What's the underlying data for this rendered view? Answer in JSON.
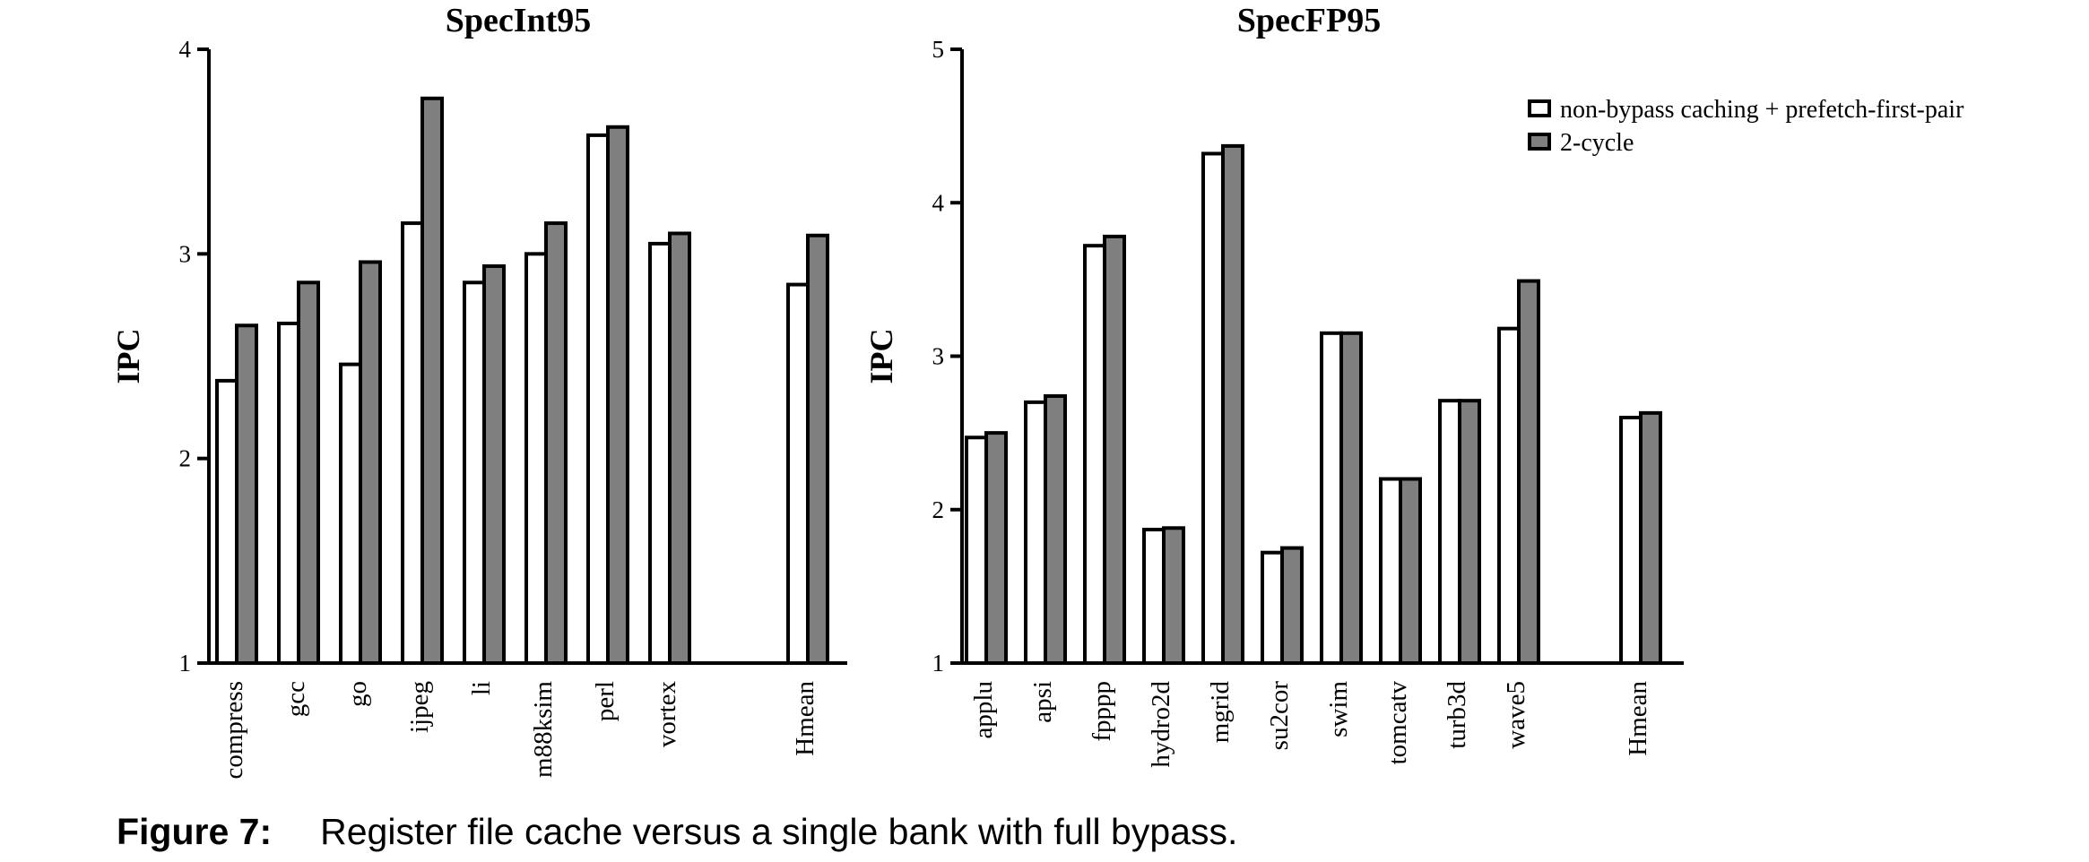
{
  "chart_data": [
    {
      "type": "bar",
      "title": "SpecInt95",
      "ylabel": "IPC",
      "ylim": [
        1,
        4
      ],
      "yticks": [
        1,
        2,
        3,
        4
      ],
      "categories": [
        "compress",
        "gcc",
        "go",
        "ijpeg",
        "li",
        "m88ksim",
        "perl",
        "vortex",
        "Hmean"
      ],
      "series": [
        {
          "name": "non-bypass caching + prefetch-first-pair",
          "color": "#ffffff",
          "values": [
            2.38,
            2.66,
            2.46,
            3.15,
            2.86,
            3.0,
            3.58,
            3.05,
            2.85
          ]
        },
        {
          "name": "2-cycle",
          "color": "#7f7f7f",
          "values": [
            2.65,
            2.86,
            2.96,
            3.76,
            2.94,
            3.15,
            3.62,
            3.1,
            3.09
          ]
        }
      ],
      "legend": "none",
      "grid": false
    },
    {
      "type": "bar",
      "title": "SpecFP95",
      "ylabel": "IPC",
      "ylim": [
        1,
        5
      ],
      "yticks": [
        1,
        2,
        3,
        4,
        5
      ],
      "categories": [
        "applu",
        "apsi",
        "fpppp",
        "hydro2d",
        "mgrid",
        "su2cor",
        "swim",
        "tomcatv",
        "turb3d",
        "wave5",
        "Hmean"
      ],
      "series": [
        {
          "name": "non-bypass caching + prefetch-first-pair",
          "color": "#ffffff",
          "values": [
            2.47,
            2.7,
            3.72,
            1.87,
            4.32,
            1.72,
            3.15,
            2.2,
            2.71,
            3.18,
            2.6
          ]
        },
        {
          "name": "2-cycle",
          "color": "#7f7f7f",
          "values": [
            2.5,
            2.74,
            3.78,
            1.88,
            4.37,
            1.75,
            3.15,
            2.2,
            2.71,
            3.49,
            2.63
          ]
        }
      ],
      "legend": "top-right",
      "grid": false
    }
  ],
  "caption": {
    "label": "Figure 7:",
    "text": "Register file cache versus a single bank with full bypass."
  }
}
